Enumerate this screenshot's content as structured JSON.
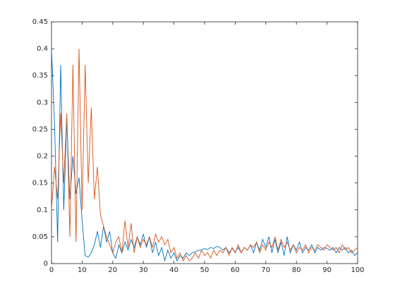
{
  "chart_data": {
    "type": "line",
    "x": [
      0,
      1,
      2,
      3,
      4,
      5,
      6,
      7,
      8,
      9,
      10,
      11,
      12,
      13,
      14,
      15,
      16,
      17,
      18,
      19,
      20,
      21,
      22,
      23,
      24,
      25,
      26,
      27,
      28,
      29,
      30,
      31,
      32,
      33,
      34,
      35,
      36,
      37,
      38,
      39,
      40,
      41,
      42,
      43,
      44,
      45,
      46,
      47,
      48,
      49,
      50,
      51,
      52,
      53,
      54,
      55,
      56,
      57,
      58,
      59,
      60,
      61,
      62,
      63,
      64,
      65,
      66,
      67,
      68,
      69,
      70,
      71,
      72,
      73,
      74,
      75,
      76,
      77,
      78,
      79,
      80,
      81,
      82,
      83,
      84,
      85,
      86,
      87,
      88,
      89,
      90,
      91,
      92,
      93,
      94,
      95,
      96,
      97,
      98,
      99,
      100
    ],
    "series": [
      {
        "color": "#0072bd",
        "values": [
          0.4,
          0.26,
          0.04,
          0.37,
          0.1,
          0.27,
          0.12,
          0.2,
          0.13,
          0.16,
          0.08,
          0.015,
          0.012,
          0.02,
          0.035,
          0.06,
          0.03,
          0.07,
          0.04,
          0.06,
          0.02,
          0.01,
          0.035,
          0.02,
          0.04,
          0.025,
          0.045,
          0.03,
          0.05,
          0.035,
          0.055,
          0.03,
          0.05,
          0.02,
          0.04,
          0.015,
          0.03,
          0.005,
          0.025,
          0.01,
          0.02,
          0.005,
          0.015,
          0.01,
          0.02,
          0.015,
          0.02,
          0.022,
          0.025,
          0.025,
          0.028,
          0.026,
          0.03,
          0.028,
          0.032,
          0.03,
          0.025,
          0.03,
          0.02,
          0.028,
          0.022,
          0.03,
          0.02,
          0.03,
          0.025,
          0.035,
          0.02,
          0.04,
          0.025,
          0.045,
          0.03,
          0.05,
          0.02,
          0.045,
          0.02,
          0.04,
          0.015,
          0.05,
          0.02,
          0.035,
          0.025,
          0.04,
          0.02,
          0.03,
          0.025,
          0.035,
          0.02,
          0.03,
          0.025,
          0.03,
          0.028,
          0.025,
          0.03,
          0.02,
          0.03,
          0.025,
          0.03,
          0.02,
          0.025,
          0.015,
          0.02
        ]
      },
      {
        "color": "#d95319",
        "values": [
          0.1,
          0.18,
          0.12,
          0.28,
          0.15,
          0.28,
          0.05,
          0.37,
          0.04,
          0.4,
          0.1,
          0.37,
          0.15,
          0.29,
          0.12,
          0.18,
          0.09,
          0.07,
          0.05,
          0.035,
          0.02,
          0.04,
          0.05,
          0.02,
          0.08,
          0.03,
          0.075,
          0.02,
          0.05,
          0.03,
          0.045,
          0.035,
          0.05,
          0.03,
          0.055,
          0.04,
          0.05,
          0.035,
          0.045,
          0.02,
          0.03,
          0.01,
          0.02,
          0.005,
          0.015,
          0.005,
          0.01,
          0.02,
          0.01,
          0.025,
          0.015,
          0.02,
          0.01,
          0.025,
          0.015,
          0.025,
          0.02,
          0.03,
          0.015,
          0.03,
          0.02,
          0.035,
          0.02,
          0.03,
          0.025,
          0.035,
          0.03,
          0.04,
          0.02,
          0.035,
          0.025,
          0.04,
          0.03,
          0.05,
          0.025,
          0.045,
          0.03,
          0.04,
          0.025,
          0.035,
          0.02,
          0.03,
          0.025,
          0.035,
          0.02,
          0.03,
          0.025,
          0.035,
          0.03,
          0.025,
          0.035,
          0.03,
          0.025,
          0.03,
          0.02,
          0.035,
          0.025,
          0.03,
          0.02,
          0.025,
          0.03
        ]
      }
    ],
    "xlim": [
      0,
      100
    ],
    "xticks": [
      0,
      10,
      20,
      30,
      40,
      50,
      60,
      70,
      80,
      90,
      100
    ],
    "ylim": [
      0,
      0.45
    ],
    "yticks": [
      0,
      0.05,
      0.1,
      0.15,
      0.2,
      0.25,
      0.3,
      0.35,
      0.4,
      0.45
    ],
    "grid": false
  }
}
